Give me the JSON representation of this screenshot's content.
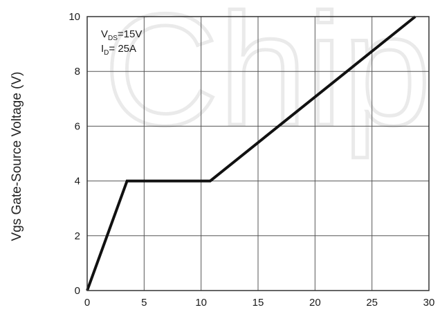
{
  "chart_data": {
    "type": "line",
    "ylabel": "Vgs Gate-Source Voltage (V)",
    "xlabel": "",
    "title": "",
    "xlim": [
      0,
      30
    ],
    "ylim": [
      0,
      10
    ],
    "xticks": [
      "0",
      "5",
      "10",
      "15",
      "20",
      "25",
      "30"
    ],
    "yticks": [
      "0",
      "2",
      "4",
      "6",
      "8",
      "10"
    ],
    "grid": true,
    "annotation": {
      "vds_prefix": "V",
      "vds_sub": "DS",
      "vds_value": "=15V",
      "id_prefix": "I",
      "id_sub": "D",
      "id_value": "= 25A"
    },
    "series": [
      {
        "x": [
          0,
          3.5,
          10.8,
          28.8
        ],
        "y": [
          0,
          4,
          4,
          10
        ]
      }
    ],
    "watermark": "Chip",
    "colors": {
      "line": "#111111",
      "grid": "#555555",
      "watermark": "#d9d9d9"
    }
  }
}
